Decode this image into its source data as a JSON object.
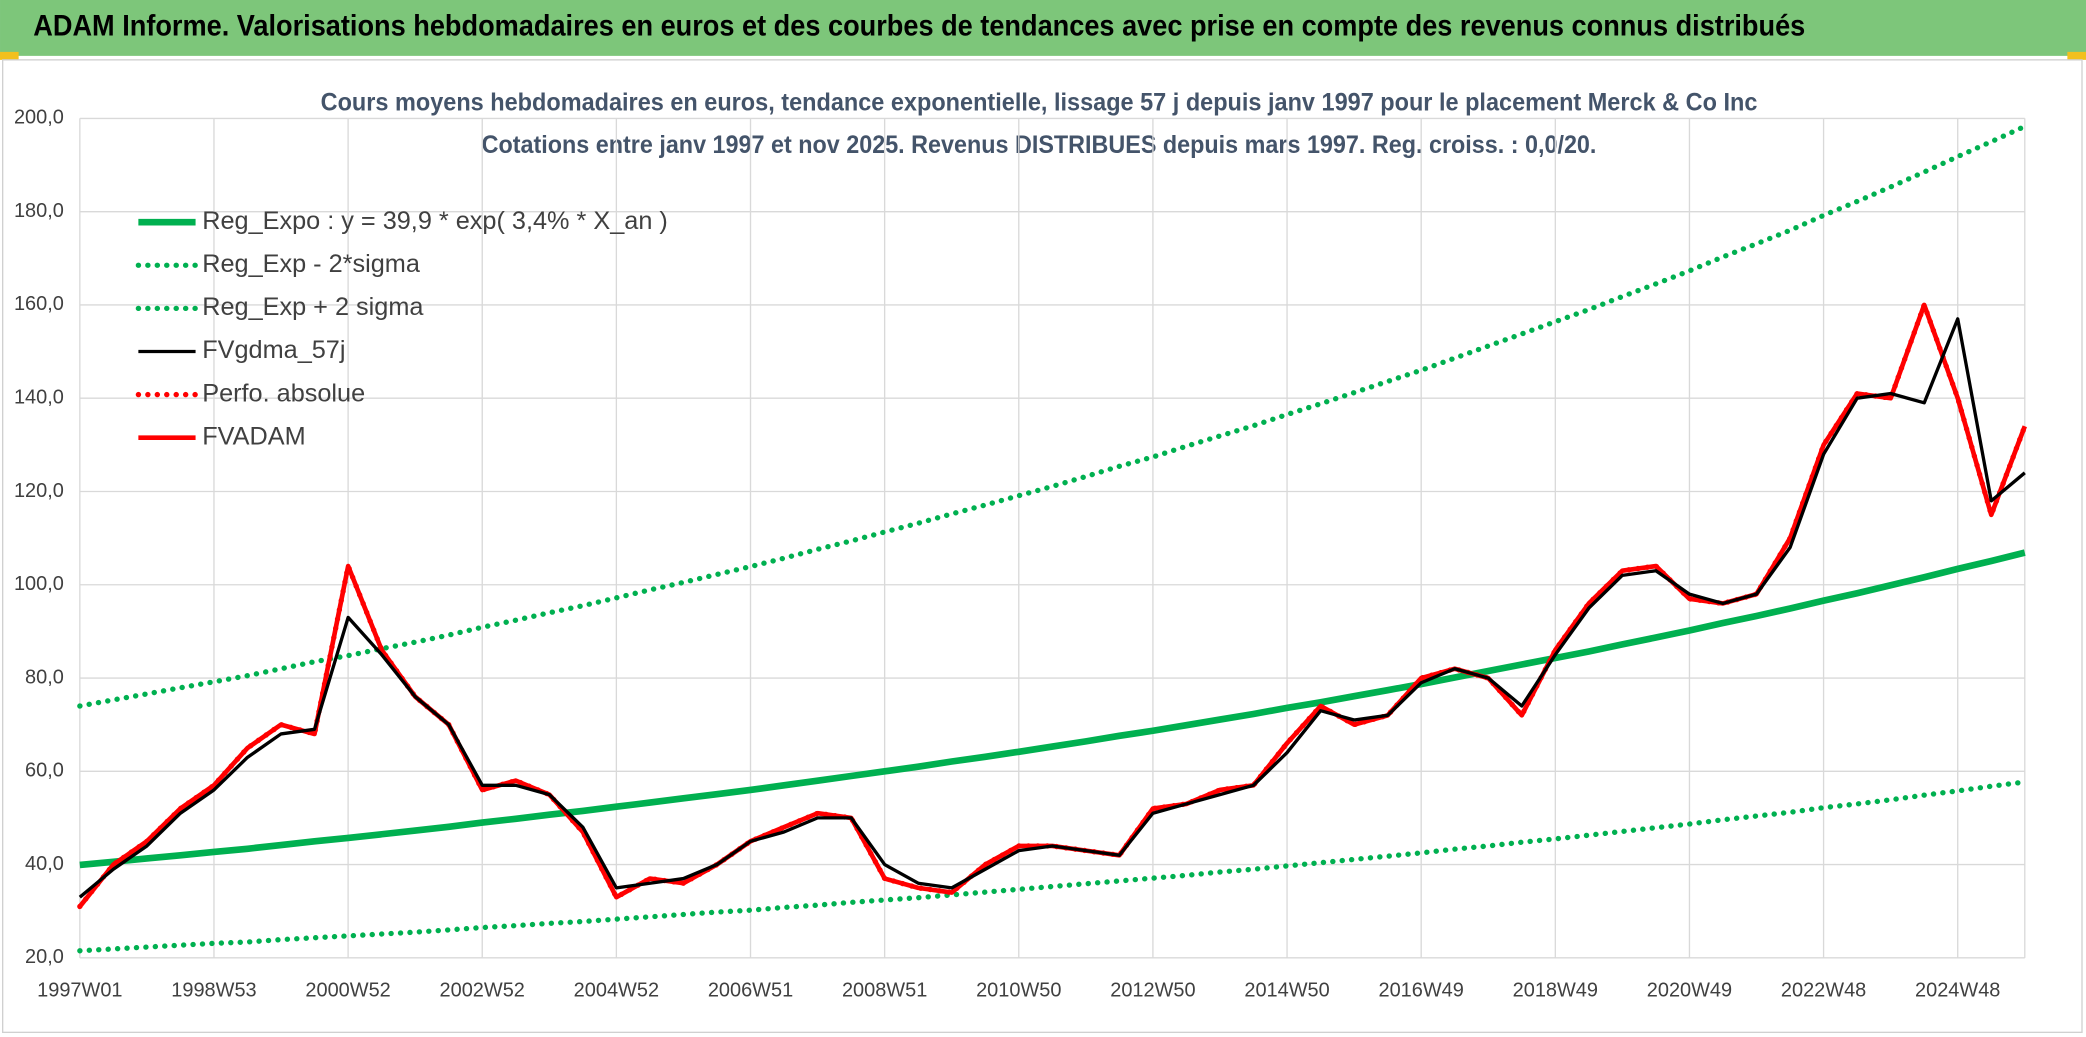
{
  "header": {
    "title": "ADAM Informe. Valorisations hebdomadaires en euros et des courbes de tendances avec prise en compte des revenus connus distribués"
  },
  "chart_data": {
    "type": "line",
    "title": "Cours moyens hebdomadaires en euros, tendance exponentielle, lissage 57 j depuis janv 1997 pour le placement Merck & Co Inc",
    "subtitle": "Cotations entre janv 1997 et nov 2025. Revenus DISTRIBUES depuis mars 1997. Reg. croiss. : 0,0/20.",
    "categories": [
      "1997W01",
      null,
      null,
      null,
      "1998W53",
      null,
      null,
      null,
      "2000W52",
      null,
      null,
      null,
      "2002W52",
      null,
      null,
      null,
      "2004W52",
      null,
      null,
      null,
      "2006W51",
      null,
      null,
      null,
      "2008W51",
      null,
      null,
      null,
      "2010W50",
      null,
      null,
      null,
      "2012W50",
      null,
      null,
      null,
      "2014W50",
      null,
      null,
      null,
      "2016W49",
      null,
      null,
      null,
      "2018W49",
      null,
      null,
      null,
      "2020W49",
      null,
      null,
      null,
      "2022W48",
      null,
      null,
      null,
      "2024W48",
      null,
      null
    ],
    "ylim": [
      20,
      200
    ],
    "yticks": [
      {
        "value": 20,
        "label": "20,0"
      },
      {
        "value": 40,
        "label": "40,0"
      },
      {
        "value": 60,
        "label": "60,0"
      },
      {
        "value": 80,
        "label": "80,0"
      },
      {
        "value": 100,
        "label": "100,0"
      },
      {
        "value": 120,
        "label": "120,0"
      },
      {
        "value": 140,
        "label": "140,0"
      },
      {
        "value": 160,
        "label": "160,0"
      },
      {
        "value": 180,
        "label": "180,0"
      },
      {
        "value": 200,
        "label": "200,0"
      }
    ],
    "grid": true,
    "legend": "top-left",
    "series": [
      {
        "name": "Reg_Expo : y = 39,9 * exp( 3,4% *  X_an )",
        "color": "#00b050",
        "dash": "solid",
        "values": [
          39.9,
          40.6,
          41.3,
          42.0,
          42.7,
          43.4,
          44.2,
          45.0,
          45.7,
          46.5,
          47.3,
          48.1,
          49.0,
          49.8,
          50.7,
          51.5,
          52.4,
          53.3,
          54.2,
          55.1,
          56.0,
          57.0,
          58.0,
          59.0,
          60.0,
          61.0,
          62.1,
          63.1,
          64.2,
          65.3,
          66.4,
          67.6,
          68.7,
          69.9,
          71.1,
          72.3,
          73.6,
          74.8,
          76.1,
          77.4,
          78.7,
          80.1,
          81.5,
          82.9,
          84.3,
          85.7,
          87.2,
          88.7,
          90.2,
          91.8,
          93.3,
          94.9,
          96.6,
          98.2,
          99.9,
          101.6,
          103.4,
          105.1,
          106.9
        ]
      },
      {
        "name": "Reg_Exp - 2*sigma",
        "color": "#00b050",
        "dash": "dotted",
        "values": [
          21.5,
          21.9,
          22.3,
          22.7,
          23.1,
          23.4,
          23.9,
          24.3,
          24.7,
          25.1,
          25.5,
          26.0,
          26.5,
          26.9,
          27.4,
          27.8,
          28.3,
          28.8,
          29.3,
          29.8,
          30.2,
          30.8,
          31.3,
          31.9,
          32.4,
          32.9,
          33.5,
          34.1,
          34.7,
          35.3,
          35.9,
          36.5,
          37.1,
          37.7,
          38.4,
          39.0,
          39.7,
          40.4,
          41.1,
          41.8,
          42.5,
          43.3,
          44.0,
          44.8,
          45.5,
          46.3,
          47.1,
          47.9,
          48.7,
          49.6,
          50.4,
          51.2,
          52.2,
          53.0,
          53.9,
          54.9,
          55.8,
          56.8,
          57.7
        ]
      },
      {
        "name": "Reg_Exp + 2 sigma",
        "color": "#00b050",
        "dash": "dotted",
        "values": [
          74.0,
          75.3,
          76.6,
          77.9,
          79.2,
          80.5,
          82.0,
          83.5,
          84.8,
          86.3,
          87.7,
          89.2,
          90.9,
          92.4,
          94.0,
          95.5,
          97.2,
          98.9,
          100.5,
          102.2,
          103.9,
          105.7,
          107.6,
          109.4,
          111.3,
          113.2,
          115.2,
          117.1,
          119.1,
          121.1,
          123.2,
          125.4,
          127.4,
          129.7,
          131.9,
          134.1,
          136.5,
          138.8,
          141.2,
          143.6,
          146.0,
          148.6,
          151.2,
          153.8,
          156.4,
          159.0,
          161.8,
          164.5,
          167.3,
          170.3,
          173.1,
          176.0,
          179.2,
          182.2,
          185.3,
          188.5,
          191.8,
          195.0,
          198.3
        ]
      },
      {
        "name": "FVgdma_57j",
        "color": "#000000",
        "dash": "solid",
        "values": [
          33,
          39,
          44,
          51,
          56,
          63,
          68,
          69,
          93,
          85,
          76,
          70,
          57,
          57,
          55,
          48,
          35,
          36,
          37,
          40,
          45,
          47,
          50,
          50,
          40,
          36,
          35,
          39,
          43,
          44,
          43,
          42,
          51,
          53,
          55,
          57,
          64,
          73,
          71,
          72,
          79,
          82,
          80,
          74,
          85,
          95,
          102,
          103,
          98,
          96,
          98,
          108,
          128,
          140,
          141,
          139,
          157,
          118,
          124
        ]
      },
      {
        "name": "Perfo. absolue",
        "color": "#ff0000",
        "dash": "dotted",
        "values": [
          31,
          40,
          45,
          52,
          57,
          65,
          70,
          68,
          104,
          86,
          76,
          70,
          56,
          58,
          55,
          47,
          33,
          37,
          36,
          40,
          45,
          48,
          51,
          50,
          37,
          35,
          34,
          40,
          44,
          44,
          43,
          42,
          52,
          53,
          56,
          57,
          66,
          74,
          70,
          72,
          80,
          82,
          80,
          72,
          86,
          96,
          103,
          104,
          97,
          96,
          98,
          110,
          130,
          141,
          140,
          160,
          140,
          115,
          134
        ]
      },
      {
        "name": "FVADAM",
        "color": "#ff0000",
        "dash": "solid",
        "values": [
          31,
          40,
          45,
          52,
          57,
          65,
          70,
          68,
          104,
          86,
          76,
          70,
          56,
          58,
          55,
          47,
          33,
          37,
          36,
          40,
          45,
          48,
          51,
          50,
          37,
          35,
          34,
          40,
          44,
          44,
          43,
          42,
          52,
          53,
          56,
          57,
          66,
          74,
          70,
          72,
          80,
          82,
          80,
          72,
          86,
          96,
          103,
          104,
          97,
          96,
          98,
          110,
          130,
          141,
          140,
          160,
          140,
          115,
          134
        ]
      }
    ]
  }
}
